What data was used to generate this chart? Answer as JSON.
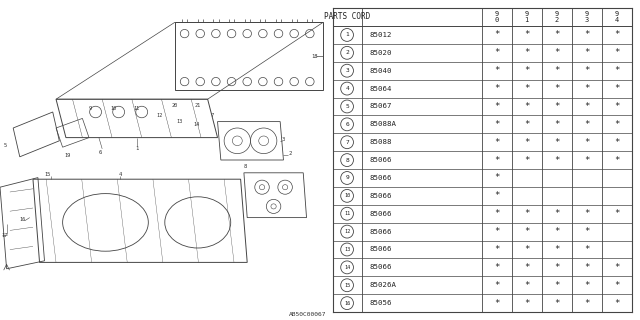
{
  "rows": [
    {
      "num": 1,
      "code": "85012",
      "marks": [
        true,
        true,
        true,
        true,
        true
      ]
    },
    {
      "num": 2,
      "code": "85020",
      "marks": [
        true,
        true,
        true,
        true,
        true
      ]
    },
    {
      "num": 3,
      "code": "85040",
      "marks": [
        true,
        true,
        true,
        true,
        true
      ]
    },
    {
      "num": 4,
      "code": "85064",
      "marks": [
        true,
        true,
        true,
        true,
        true
      ]
    },
    {
      "num": 5,
      "code": "85067",
      "marks": [
        true,
        true,
        true,
        true,
        true
      ]
    },
    {
      "num": 6,
      "code": "85088A",
      "marks": [
        true,
        true,
        true,
        true,
        true
      ]
    },
    {
      "num": 7,
      "code": "85088",
      "marks": [
        true,
        true,
        true,
        true,
        true
      ]
    },
    {
      "num": 8,
      "code": "85066",
      "marks": [
        true,
        true,
        true,
        true,
        true
      ]
    },
    {
      "num": 9,
      "code": "85066",
      "marks": [
        true,
        false,
        false,
        false,
        false
      ]
    },
    {
      "num": 10,
      "code": "85066",
      "marks": [
        true,
        false,
        false,
        false,
        false
      ]
    },
    {
      "num": 11,
      "code": "85066",
      "marks": [
        true,
        true,
        true,
        true,
        true
      ]
    },
    {
      "num": 12,
      "code": "85066",
      "marks": [
        true,
        true,
        true,
        true,
        false
      ]
    },
    {
      "num": 13,
      "code": "85066",
      "marks": [
        true,
        true,
        true,
        true,
        false
      ]
    },
    {
      "num": 14,
      "code": "85066",
      "marks": [
        true,
        true,
        true,
        true,
        true
      ]
    },
    {
      "num": 15,
      "code": "85026A",
      "marks": [
        true,
        true,
        true,
        true,
        true
      ]
    },
    {
      "num": 16,
      "code": "85056",
      "marks": [
        true,
        true,
        true,
        true,
        true
      ]
    }
  ],
  "year_labels": [
    "9\n0",
    "9\n1",
    "9\n2",
    "9\n3",
    "9\n4"
  ],
  "bg_color": "#ffffff",
  "ref_code": "AB50C00067",
  "line_color": "#444444",
  "text_color": "#222222"
}
